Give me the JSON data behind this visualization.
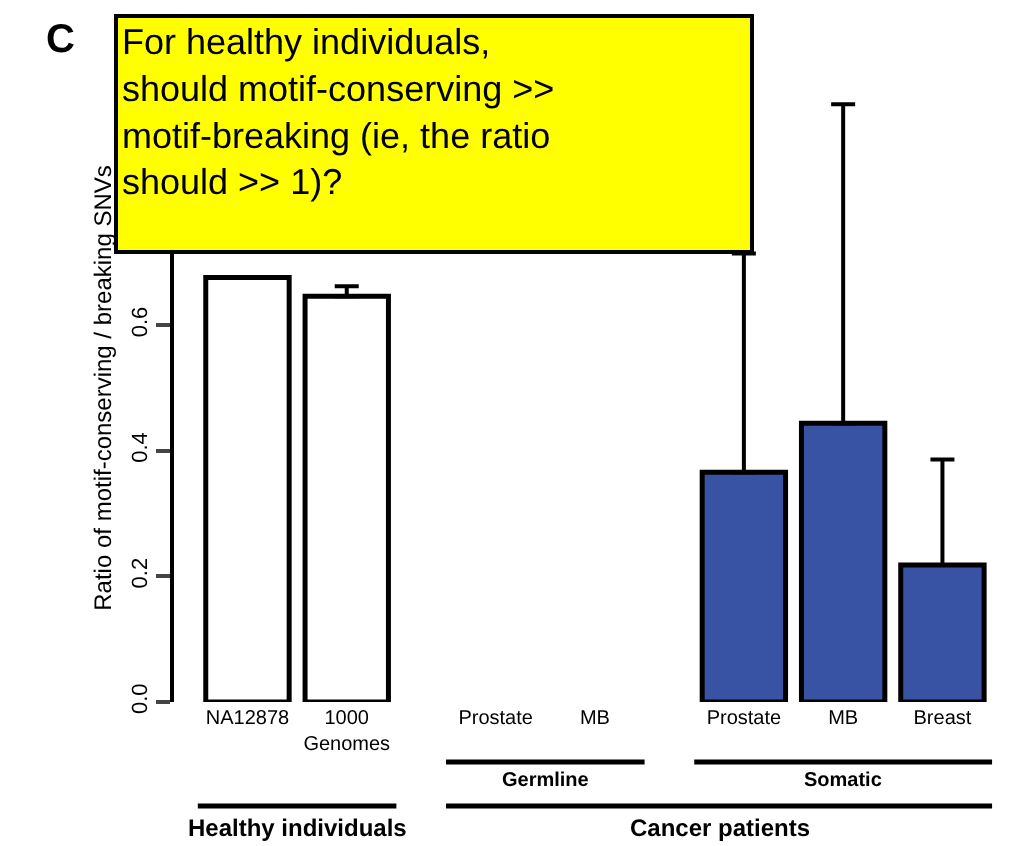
{
  "chart_data": {
    "type": "bar",
    "ylabel": "Ratio of motif-conserving / breaking SNVs",
    "categories": [
      "NA12878",
      "1000\nGenomes",
      "Prostate",
      "MB",
      "Prostate",
      "MB",
      "Breast"
    ],
    "values": [
      0.676,
      0.646,
      null,
      null,
      0.366,
      0.444,
      0.218
    ],
    "errors": [
      null,
      [
        0.646,
        0.662
      ],
      null,
      null,
      [
        0.366,
        0.714
      ],
      [
        0.444,
        0.952
      ],
      [
        0.218,
        0.386
      ]
    ],
    "colors": [
      "#ffffff",
      "#ffffff",
      "#add8e6",
      "#add8e6",
      "#3953a4",
      "#3953a4",
      "#3953a4"
    ],
    "ylim": [
      0,
      1.0
    ],
    "yticks": [
      {
        "value": 0,
        "label": "0.0"
      },
      {
        "value": 0.2,
        "label": "0.2"
      },
      {
        "value": 0.4,
        "label": "0.4"
      },
      {
        "value": 0.6,
        "label": "0.6"
      }
    ],
    "annotations": [
      "C",
      "For healthy individuals,\nshould motif-conserving >>\nmotif-breaking (ie, the ratio\nshould >> 1)?",
      "Germline",
      "Somatic",
      "Healthy individuals",
      "Cancer patients"
    ]
  }
}
